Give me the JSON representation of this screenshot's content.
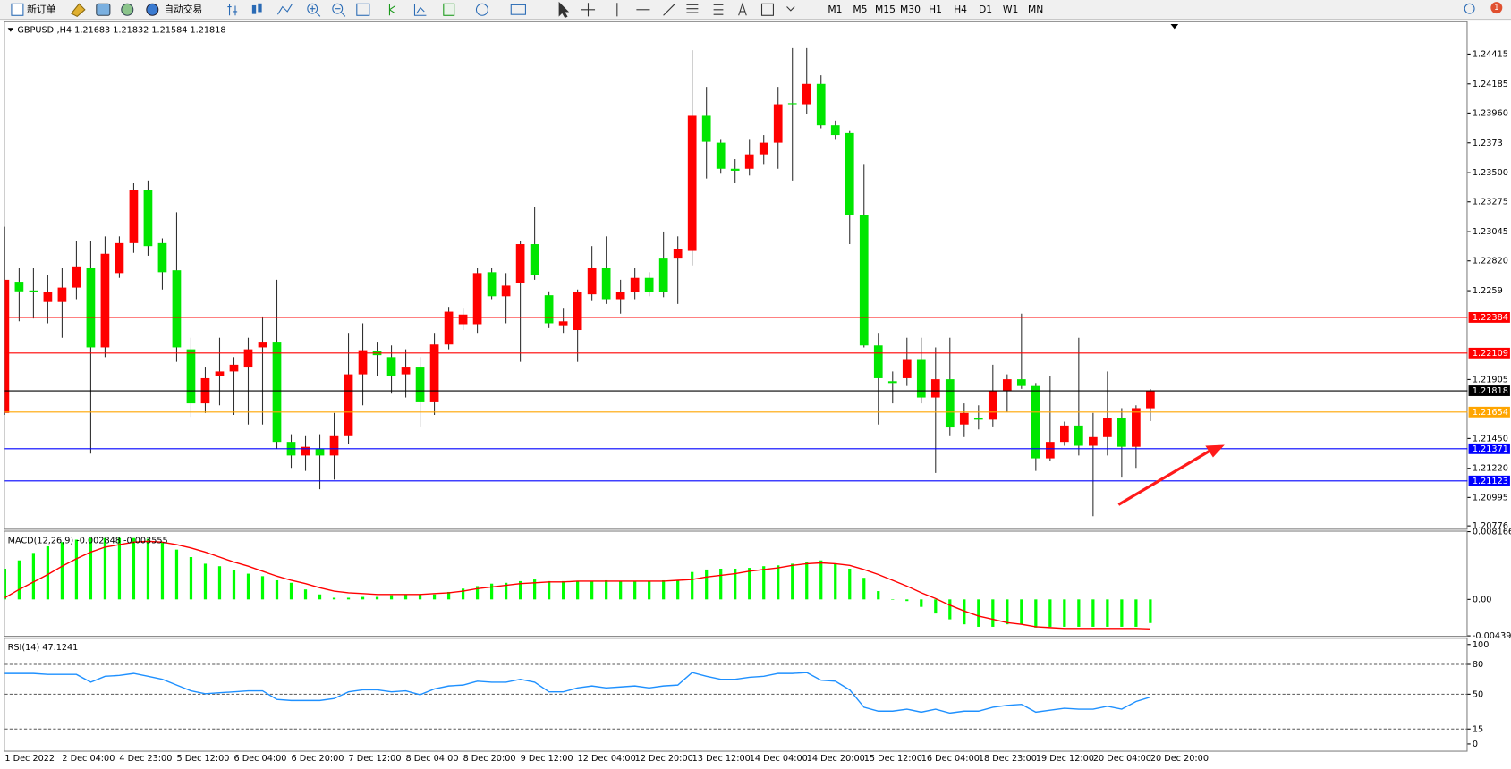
{
  "toolbar": {
    "buttons": [
      "新订单",
      "自动交易"
    ],
    "timeframes": [
      "M1",
      "M5",
      "M15",
      "M30",
      "H1",
      "H4",
      "D1",
      "W1",
      "MN"
    ],
    "badge": "1"
  },
  "chart_data": [
    {
      "type": "candlestick",
      "title": "GBPUSD-,H4  1.21683 1.21832 1.21584 1.21818",
      "categories": [
        "1 Dec 2022",
        null,
        null,
        null,
        "2 Dec 04:00",
        null,
        null,
        null,
        "4 Dec 23:00",
        null,
        null,
        null,
        "5 Dec 12:00",
        null,
        null,
        null,
        "6 Dec 04:00",
        null,
        null,
        null,
        "6 Dec 20:00",
        null,
        null,
        null,
        "7 Dec 12:00",
        null,
        null,
        null,
        "8 Dec 04:00",
        null,
        null,
        null,
        "8 Dec 20:00",
        null,
        null,
        null,
        "9 Dec 12:00",
        null,
        null,
        null,
        "12 Dec 04:00",
        null,
        null,
        null,
        "12 Dec 20:00",
        null,
        null,
        null,
        "13 Dec 12:00",
        null,
        null,
        null,
        "14 Dec 04:00",
        null,
        null,
        null,
        "14 Dec 20:00",
        null,
        null,
        null,
        "15 Dec 12:00",
        null,
        null,
        null,
        "16 Dec 04:00",
        null,
        null,
        null,
        "18 Dec 23:00",
        null,
        null,
        null,
        "19 Dec 12:00",
        null,
        null,
        null,
        "20 Dec 04:00",
        null,
        null,
        null,
        "20 Dec 20:00"
      ],
      "open": [
        1.21647,
        1.22659,
        1.22592,
        1.22503,
        1.22503,
        1.22614,
        1.22763,
        1.22153,
        1.22726,
        1.22957,
        1.23366,
        1.22957,
        1.22748,
        1.22138,
        1.21721,
        1.2193,
        1.21967,
        1.22004,
        1.22153,
        1.2219,
        1.21424,
        1.21319,
        1.21371,
        1.21319,
        1.21468,
        1.21945,
        1.22123,
        1.22078,
        1.21945,
        1.22004,
        1.21729,
        1.22175,
        1.22332,
        1.22332,
        1.22733,
        1.22547,
        1.22652,
        1.22949,
        1.22555,
        1.22317,
        1.22287,
        1.22562,
        1.22763,
        1.22525,
        1.22577,
        1.22689,
        1.22838,
        1.22838,
        1.22897,
        1.23939,
        1.23731,
        1.2353,
        1.2353,
        1.23641,
        1.23731,
        1.24036,
        1.24028,
        1.24185,
        1.23865,
        1.23805,
        1.23172,
        1.22168,
        1.21892,
        1.21915,
        1.22056,
        1.21766,
        1.21907,
        1.21558,
        1.2161,
        1.21595,
        1.21818,
        1.21907,
        1.21855,
        1.21297,
        1.21424,
        1.2155,
        1.21394,
        1.21461,
        1.2161,
        1.21386,
        1.21683
      ],
      "high": [
        1.23083,
        1.22763,
        1.22763,
        1.22711,
        1.22763,
        1.22972,
        1.22972,
        1.23009,
        1.23009,
        1.23418,
        1.2344,
        1.22994,
        1.23195,
        1.22227,
        1.22004,
        1.22227,
        1.22078,
        1.22227,
        1.22391,
        1.22674,
        1.21483,
        1.21468,
        1.21483,
        1.21647,
        1.22265,
        1.22339,
        1.2219,
        1.22168,
        1.22138,
        1.22078,
        1.22265,
        1.22465,
        1.22451,
        1.22763,
        1.22763,
        1.22726,
        1.22972,
        1.23232,
        1.22585,
        1.22451,
        1.22599,
        1.22934,
        1.23009,
        1.22674,
        1.22763,
        1.22733,
        1.23046,
        1.23009,
        1.24445,
        1.24162,
        1.23753,
        1.23604,
        1.23753,
        1.2379,
        1.24162,
        1.2446,
        1.2446,
        1.24252,
        1.23902,
        1.23827,
        1.23567,
        1.22265,
        1.21967,
        1.22227,
        1.22227,
        1.22153,
        1.22227,
        1.21721,
        1.21706,
        1.22019,
        1.21945,
        1.22413,
        1.21878,
        1.2193,
        1.2158,
        1.22227,
        1.21647,
        1.21967,
        1.21684,
        1.21706,
        1.21832
      ],
      "low": [
        1.21632,
        1.22354,
        1.22376,
        1.22339,
        1.22227,
        1.22525,
        1.21334,
        1.22078,
        1.22689,
        1.22882,
        1.2286,
        1.22599,
        1.22041,
        1.21617,
        1.21647,
        1.21706,
        1.21632,
        1.21558,
        1.21558,
        1.21371,
        1.21223,
        1.212,
        1.21059,
        1.21133,
        1.21409,
        1.21706,
        1.2193,
        1.21796,
        1.21766,
        1.21543,
        1.21632,
        1.22138,
        1.22287,
        1.22265,
        1.22525,
        1.22339,
        1.22041,
        1.22674,
        1.22302,
        1.22265,
        1.22041,
        1.2251,
        1.22488,
        1.22413,
        1.22525,
        1.22547,
        1.2254,
        1.22488,
        1.22785,
        1.23455,
        1.23492,
        1.23418,
        1.23478,
        1.23567,
        1.2353,
        1.2344,
        1.23954,
        1.23842,
        1.23753,
        1.22949,
        1.22153,
        1.21558,
        1.21721,
        1.21855,
        1.21721,
        1.21185,
        1.21468,
        1.21461,
        1.2152,
        1.21543,
        1.21654,
        1.21833,
        1.212,
        1.21275,
        1.21394,
        1.21319,
        1.20851,
        1.21319,
        1.21148,
        1.21223,
        1.21584
      ],
      "close": [
        1.22674,
        1.22585,
        1.22577,
        1.22577,
        1.22614,
        1.22771,
        1.22153,
        1.22875,
        1.22957,
        1.23366,
        1.22934,
        1.22733,
        1.22153,
        1.21721,
        1.21915,
        1.21967,
        1.22019,
        1.22138,
        1.2219,
        1.21424,
        1.21319,
        1.21386,
        1.21319,
        1.21468,
        1.21945,
        1.22131,
        1.22093,
        1.2193,
        1.22004,
        1.21729,
        1.22175,
        1.22428,
        1.22406,
        1.22726,
        1.22547,
        1.22629,
        1.22949,
        1.22711,
        1.22339,
        1.22354,
        1.22577,
        1.22763,
        1.22525,
        1.22577,
        1.22689,
        1.22577,
        1.22577,
        1.22912,
        1.23939,
        1.23738,
        1.2353,
        1.23515,
        1.23641,
        1.23731,
        1.24028,
        1.24028,
        1.24185,
        1.23865,
        1.2379,
        1.23172,
        1.22168,
        1.21915,
        1.21878,
        1.22056,
        1.21766,
        1.21907,
        1.21535,
        1.21647,
        1.21595,
        1.21818,
        1.21907,
        1.21855,
        1.21297,
        1.21424,
        1.2155,
        1.21394,
        1.21461,
        1.2161,
        1.21386,
        1.21684,
        1.21818
      ],
      "up_color": "#ff0000",
      "down_color": "#00e600",
      "wick_color": "#303030",
      "ylim": [
        1.20754,
        1.24668
      ],
      "yticks": [
        1.24415,
        1.24185,
        {
          "value": 1.2396,
          "label": "1.23960"
        },
        1.2373,
        {
          "value": 1.235,
          "label": "1.23500"
        },
        1.23275,
        1.23045,
        {
          "value": 1.2282,
          "label": "1.22820"
        },
        1.2259,
        1.21905,
        {
          "value": 1.2145,
          "label": "1.21450"
        },
        {
          "value": 1.2122,
          "label": "1.21220"
        },
        1.20995,
        1.20776
      ],
      "hlines": [
        {
          "value": 1.22384,
          "color": "#ff0000"
        },
        {
          "value": 1.22109,
          "color": "#ff0000"
        },
        {
          "value": 1.21818,
          "color": "#000000"
        },
        {
          "value": 1.21654,
          "color": "#ffa500"
        },
        {
          "value": 1.21371,
          "color": "#0000ff"
        },
        {
          "value": 1.21123,
          "color": "#0000ff"
        }
      ]
    },
    {
      "type": "combo",
      "title": "MACD(12,26,9) -0.002848 -0.003555",
      "series": [
        {
          "type": "bar",
          "color": "#00ff00",
          "values": [
            0.0037,
            0.0047,
            0.0056,
            0.0064,
            0.0069,
            0.0072,
            0.0074,
            0.0074,
            0.0074,
            0.0074,
            0.0073,
            0.0069,
            0.006,
            0.0051,
            0.0043,
            0.004,
            0.0035,
            0.0031,
            0.0028,
            0.0023,
            0.002,
            0.0012,
            0.0006,
            0.0002,
            0.0002,
            0.0003,
            0.0003,
            0.0005,
            0.0006,
            0.0006,
            0.0006,
            0.0009,
            0.0013,
            0.0016,
            0.0019,
            0.002,
            0.0022,
            0.0024,
            0.0022,
            0.0022,
            0.0022,
            0.0022,
            0.0023,
            0.0022,
            0.0022,
            0.0022,
            0.0023,
            0.0023,
            0.0033,
            0.0036,
            0.0037,
            0.0037,
            0.0038,
            0.004,
            0.0041,
            0.0043,
            0.0045,
            0.0047,
            0.0043,
            0.0037,
            0.0026,
            0.001,
            0,
            -0.0002,
            -0.0009,
            -0.0017,
            -0.0024,
            -0.003,
            -0.0033,
            -0.0033,
            -0.003,
            -0.003,
            -0.0034,
            -0.0033,
            -0.0033,
            -0.0033,
            -0.0033,
            -0.0033,
            -0.0033,
            -0.0033,
            -0.002848
          ]
        },
        {
          "type": "line",
          "color": "#ff0000",
          "values": [
            0.0002,
            0.0012,
            0.0021,
            0.003,
            0.004,
            0.0049,
            0.0057,
            0.0063,
            0.0066,
            0.0069,
            0.007,
            0.0069,
            0.0066,
            0.0062,
            0.0057,
            0.0051,
            0.0045,
            0.004,
            0.0034,
            0.0028,
            0.0023,
            0.0019,
            0.0014,
            0.001,
            0.0008,
            0.0007,
            0.0006,
            0.0006,
            0.0006,
            0.0006,
            0.0007,
            0.0008,
            0.001,
            0.0013,
            0.0015,
            0.0017,
            0.0019,
            0.002,
            0.0021,
            0.0021,
            0.0022,
            0.0022,
            0.0022,
            0.0022,
            0.0022,
            0.0022,
            0.0022,
            0.0023,
            0.0024,
            0.0027,
            0.0029,
            0.0031,
            0.0034,
            0.0036,
            0.0038,
            0.0041,
            0.0043,
            0.0044,
            0.0043,
            0.0041,
            0.0036,
            0.003,
            0.0023,
            0.0016,
            0.0008,
            0.0001,
            -0.0007,
            -0.0014,
            -0.002,
            -0.0024,
            -0.0028,
            -0.003,
            -0.0033,
            -0.0034,
            -0.0035,
            -0.0035,
            -0.0035,
            -0.0035,
            -0.0035,
            -0.0035,
            -0.003555
          ]
        }
      ],
      "ylim": [
        -0.004392,
        0.008166
      ],
      "yticks": [
        0.008166,
        {
          "value": 0,
          "label": "0.00"
        },
        -0.004392
      ]
    },
    {
      "type": "line",
      "title": "RSI(14) 47.1241",
      "series": [
        {
          "color": "#1e90ff",
          "values": [
            70.9,
            70.9,
            70.9,
            69.9,
            69.9,
            69.9,
            62.1,
            68,
            68.9,
            70.9,
            68,
            65,
            59.2,
            53.4,
            50.5,
            51.5,
            52.4,
            53.4,
            53.4,
            44.7,
            43.7,
            43.7,
            43.7,
            45.6,
            52.4,
            54.4,
            54.4,
            52.4,
            53.4,
            49.5,
            55.3,
            58.3,
            59.2,
            63.1,
            62.1,
            62.1,
            65,
            62.1,
            52.4,
            52.4,
            56.3,
            58.3,
            56.3,
            57.3,
            58.3,
            56.3,
            58.3,
            59.2,
            71.8,
            68,
            65,
            65,
            67,
            68,
            70.9,
            70.9,
            71.8,
            64.1,
            63.1,
            54.4,
            36.9,
            33,
            33,
            35,
            32,
            35,
            31.1,
            33,
            33,
            36.9,
            38.8,
            39.8,
            32,
            34,
            35.9,
            35,
            35,
            37.9,
            35,
            42.7,
            47.1241
          ]
        }
      ],
      "ylim": [
        -6.8,
        105.8
      ],
      "yticks": [
        100,
        80,
        50,
        15,
        0
      ],
      "levels": [
        80,
        50,
        15
      ]
    }
  ]
}
